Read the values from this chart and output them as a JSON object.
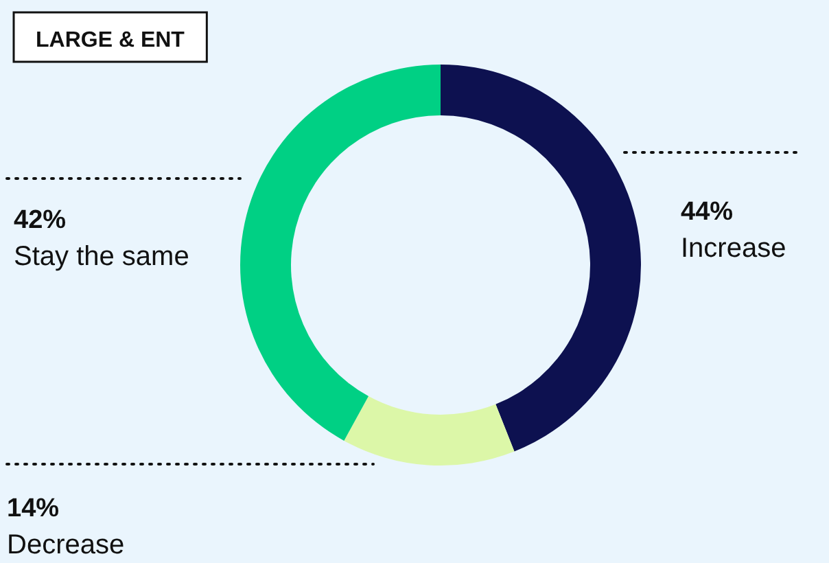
{
  "chart_data": {
    "type": "donut",
    "title": "LARGE & ENT",
    "categories": [
      "Increase",
      "Decrease",
      "Stay the same"
    ],
    "values": [
      44,
      14,
      42
    ],
    "value_labels": [
      "44%",
      "14%",
      "42%"
    ],
    "colors": [
      "#0d1150",
      "#dcf7a8",
      "#00d084"
    ],
    "legend": false
  }
}
